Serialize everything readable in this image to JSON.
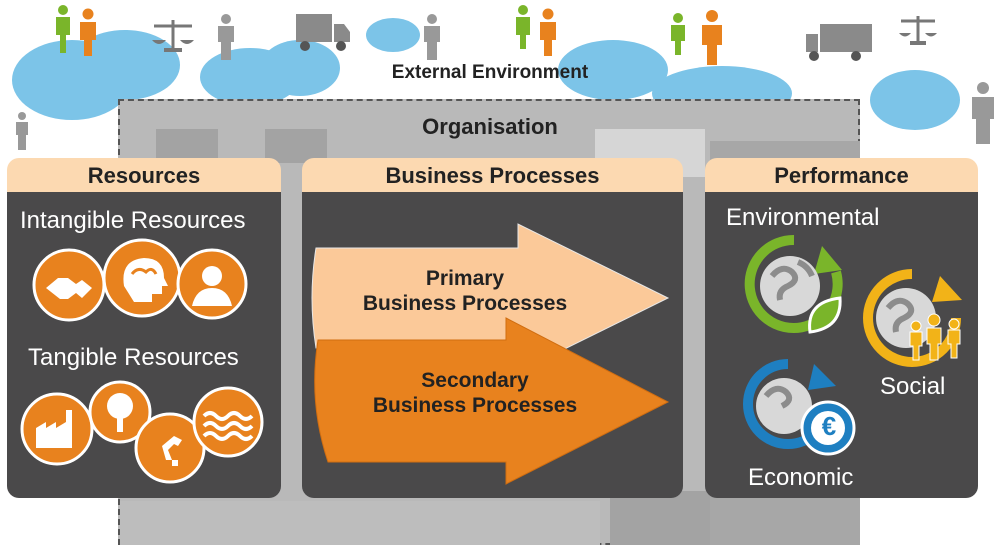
{
  "external_environment": "External Environment",
  "organisation": "Organisation",
  "resources": {
    "title": "Resources",
    "intangible": "Intangible Resources",
    "tangible": "Tangible Resources",
    "intangible_icons": [
      "handshake-icon",
      "brain-icon",
      "person-icon"
    ],
    "tangible_icons": [
      "factory-icon",
      "tree-icon",
      "robot-arm-icon",
      "water-icon"
    ]
  },
  "processes": {
    "title": "Business Processes",
    "primary_line1": "Primary",
    "primary_line2": "Business Processes",
    "secondary_line1": "Secondary",
    "secondary_line2": "Business Processes"
  },
  "performance": {
    "title": "Performance",
    "environmental": "Environmental",
    "social": "Social",
    "economic": "Economic",
    "euro_symbol": "€"
  },
  "colors": {
    "orange": "#e8821e",
    "light_orange": "#fcd9b1",
    "panel_dark": "#4a494a",
    "green": "#7ab52a",
    "blue": "#1e7fc1",
    "yellow": "#f2b318",
    "cloud": "#7cc4e8"
  }
}
